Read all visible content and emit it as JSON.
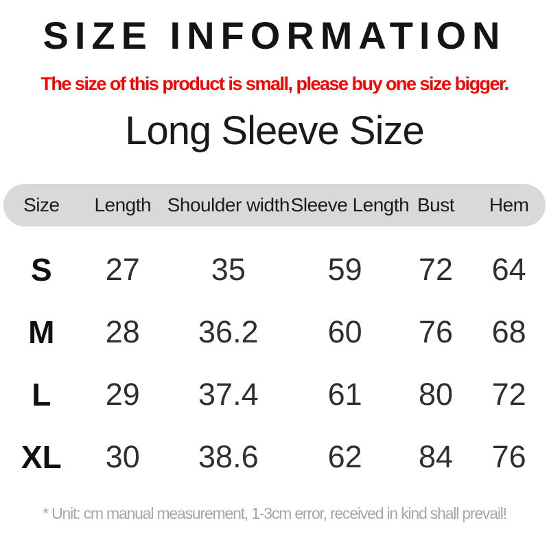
{
  "header": {
    "title": "SIZE INFORMATION",
    "warning": "The size of this product is small, please buy one size bigger.",
    "subtitle": "Long Sleeve Size"
  },
  "size_table": {
    "columns": [
      "Size",
      "Length",
      "Shoulder width",
      "Sleeve Length",
      "Bust",
      "Hem"
    ],
    "rows": [
      {
        "size": "S",
        "length": "27",
        "shoulder_width": "35",
        "sleeve_length": "59",
        "bust": "72",
        "hem": "64"
      },
      {
        "size": "M",
        "length": "28",
        "shoulder_width": "36.2",
        "sleeve_length": "60",
        "bust": "76",
        "hem": "68"
      },
      {
        "size": "L",
        "length": "29",
        "shoulder_width": "37.4",
        "sleeve_length": "61",
        "bust": "80",
        "hem": "72"
      },
      {
        "size": "XL",
        "length": "30",
        "shoulder_width": "38.6",
        "sleeve_length": "62",
        "bust": "84",
        "hem": "76"
      }
    ]
  },
  "footer": {
    "note": "* Unit: cm manual measurement, 1-3cm error, received in kind shall prevail!"
  },
  "colors": {
    "warning_red": "#fe0000",
    "header_pill": "#d9d9d9",
    "footnote_gray": "#a6a6a6",
    "text_black": "#141414"
  }
}
